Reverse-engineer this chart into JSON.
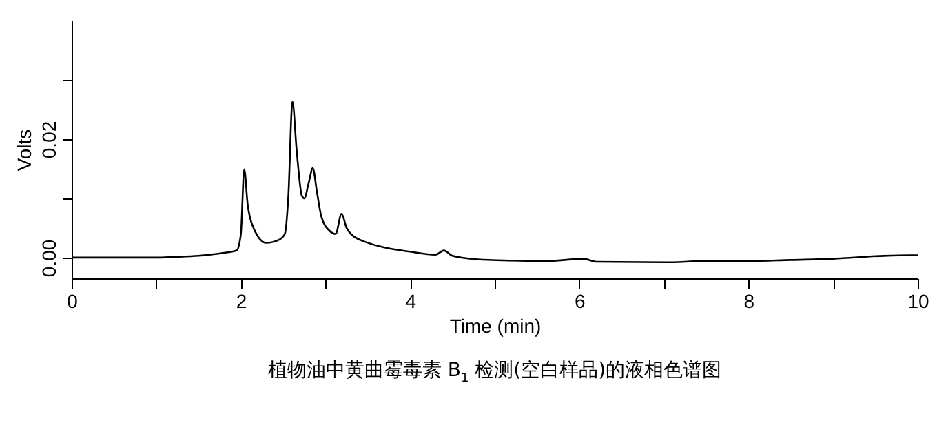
{
  "chart_data": {
    "type": "line",
    "title": "植物油中黄曲霉毒素 B$_{1}$ 检测(空白样品)的液相色谱图",
    "xlabel": "Time (min)",
    "ylabel": "Volts",
    "x": [
      0,
      0.5,
      1.0,
      1.2,
      1.5,
      1.8,
      1.95,
      2.0,
      2.04,
      2.08,
      2.15,
      2.3,
      2.45,
      2.52,
      2.56,
      2.61,
      2.66,
      2.72,
      2.75,
      2.8,
      2.85,
      2.9,
      2.95,
      3.05,
      3.12,
      3.19,
      3.25,
      3.3,
      3.5,
      3.7,
      4.0,
      4.3,
      4.4,
      4.5,
      4.8,
      5.2,
      5.6,
      6.05,
      6.2,
      7.0,
      7.5,
      8.0,
      8.5,
      9.0,
      9.6,
      9.9,
      10.0
    ],
    "series": [
      {
        "color": "#000000",
        "values": [
          0,
          0,
          0,
          0.0001,
          0.0003,
          0.0008,
          0.0012,
          0.004,
          0.0149,
          0.009,
          0.005,
          0.0025,
          0.003,
          0.004,
          0.01,
          0.0263,
          0.018,
          0.0105,
          0.01,
          0.0125,
          0.0151,
          0.011,
          0.007,
          0.0045,
          0.004,
          0.0074,
          0.005,
          0.004,
          0.0025,
          0.0017,
          0.001,
          0.0005,
          0.0012,
          0.0003,
          -0.0003,
          -0.0005,
          -0.0006,
          -0.0002,
          -0.0007,
          -0.0008,
          -0.0006,
          -0.0006,
          -0.0004,
          -0.0002,
          0.0003,
          0.0004,
          0.0004
        ]
      }
    ],
    "xlim": [
      0,
      10
    ],
    "ylim": [
      -0.0035,
      0.04
    ],
    "xticks": [
      0,
      {
        "value": 1,
        "label": null
      },
      2,
      {
        "value": 3,
        "label": null
      },
      4,
      {
        "value": 5,
        "label": null
      },
      6,
      {
        "value": 7,
        "label": null
      },
      8,
      {
        "value": 9,
        "label": null
      },
      10
    ],
    "yticks": [
      {
        "value": 0,
        "label": "0.00"
      },
      {
        "value": 0.01,
        "label": null
      },
      {
        "value": 0.02,
        "label": "0.02"
      },
      {
        "value": 0.03,
        "label": null
      }
    ],
    "grid": false
  }
}
